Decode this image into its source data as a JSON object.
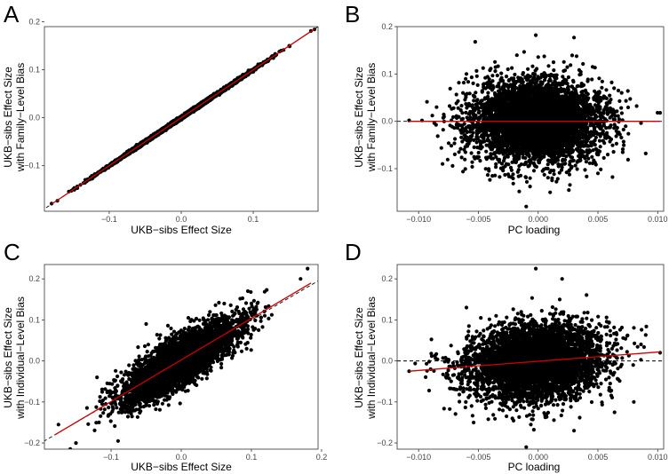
{
  "figure": {
    "panels": [
      {
        "letter": "A",
        "xlabel": "UKB−sibs Effect Size",
        "ylabel_line1": "UKB−sibs Effect Size",
        "ylabel_line2": "with Family−Level Bias"
      },
      {
        "letter": "B",
        "xlabel": "PC loading",
        "ylabel_line1": "UKB−sibs Effect Size",
        "ylabel_line2": "with Family−Level Bias"
      },
      {
        "letter": "C",
        "xlabel": "UKB−sibs Effect Size",
        "ylabel_line1": "UKB−sibs Effect Size",
        "ylabel_line2": "with Individual−Level Bias"
      },
      {
        "letter": "D",
        "xlabel": "PC loading",
        "ylabel_line1": "UKB−sibs Effect Size",
        "ylabel_line2": "with Individual−Level Bias"
      }
    ]
  },
  "chart_data": [
    {
      "id": "A",
      "type": "scatter",
      "xlabel": "UKB−sibs Effect Size",
      "ylabel": "UKB−sibs Effect Size with Family−Level Bias",
      "xlim": [
        -0.19,
        0.19
      ],
      "ylim": [
        -0.195,
        0.19
      ],
      "xticks": [
        -0.1,
        0.0,
        0.1
      ],
      "xtick_labels": [
        "−0.1",
        "0.0",
        "0.1"
      ],
      "yticks": [
        -0.1,
        0.0,
        0.1,
        0.2
      ],
      "ytick_labels": [
        "−0.1",
        "0.0",
        "0.1",
        "0.2"
      ],
      "reference_line": {
        "style": "dashed",
        "color": "#000000",
        "description": "y = x"
      },
      "fit_line": {
        "color": "#cc0000",
        "x": [
          -0.18,
          0.185
        ],
        "y": [
          -0.18,
          0.185
        ]
      },
      "points": {
        "n": 6000,
        "seed": 11,
        "spread_x": 0.045,
        "spread_y": 0.0015,
        "x_mean": 0.0,
        "slope": 1.0,
        "intercept": 0.0,
        "x_range": [
          -0.18,
          0.185
        ],
        "outliers": [
          [
            -0.18,
            -0.179
          ],
          [
            -0.15,
            -0.149
          ],
          [
            -0.14,
            -0.14
          ],
          [
            -0.12,
            -0.12
          ],
          [
            0.13,
            0.131
          ],
          [
            0.15,
            0.15
          ],
          [
            0.18,
            0.181
          ],
          [
            0.185,
            0.184
          ]
        ]
      }
    },
    {
      "id": "B",
      "type": "scatter",
      "xlabel": "PC loading",
      "ylabel": "UKB−sibs Effect Size with Family−Level Bias",
      "xlim": [
        -0.0118,
        0.0105
      ],
      "ylim": [
        -0.19,
        0.2
      ],
      "xticks": [
        -0.01,
        -0.005,
        0.0,
        0.005,
        0.01
      ],
      "xtick_labels": [
        "−0.010",
        "−0.005",
        "0.000",
        "0.005",
        "0.010"
      ],
      "yticks": [
        -0.1,
        0.0,
        0.1,
        0.2
      ],
      "ytick_labels": [
        "−0.1",
        "0.0",
        "0.1",
        "0.2"
      ],
      "reference_line": {
        "style": "dashed",
        "color": "#000000",
        "description": "y = 0"
      },
      "fit_line": {
        "color": "#cc0000",
        "x": [
          -0.0108,
          0.0102
        ],
        "y": [
          0.0,
          0.0
        ]
      },
      "points": {
        "n": 5000,
        "seed": 23,
        "spread_x": 0.0027,
        "spread_y": 0.042,
        "x_mean": -0.0002,
        "slope": 0.0,
        "intercept": 0.0,
        "x_range": [
          -0.0108,
          0.0102
        ],
        "outliers": [
          [
            -0.0002,
            0.182
          ],
          [
            0.003,
            0.177
          ],
          [
            -0.0108,
            0.002
          ],
          [
            0.0102,
            0.018
          ],
          [
            -0.0085,
            0.03
          ],
          [
            -0.008,
            -0.09
          ],
          [
            -0.001,
            -0.18
          ],
          [
            0.001,
            -0.15
          ],
          [
            0.005,
            -0.11
          ],
          [
            -0.006,
            0.1
          ]
        ]
      }
    },
    {
      "id": "C",
      "type": "scatter",
      "xlabel": "UKB−sibs Effect Size",
      "ylabel": "UKB−sibs Effect Size with Individual−Level Bias",
      "xlim": [
        -0.195,
        0.195
      ],
      "ylim": [
        -0.215,
        0.235
      ],
      "xticks": [
        -0.1,
        0.0,
        0.1,
        0.2
      ],
      "xtick_labels": [
        "−0.1",
        "0.0",
        "0.1",
        "0.2"
      ],
      "yticks": [
        -0.2,
        -0.1,
        0.0,
        0.1,
        0.2
      ],
      "ytick_labels": [
        "−0.2",
        "−0.1",
        "0.0",
        "0.1",
        "0.2"
      ],
      "reference_line": {
        "style": "dashed",
        "color": "#000000",
        "description": "y = x"
      },
      "fit_line": {
        "color": "#cc0000",
        "x": [
          -0.18,
          0.185
        ],
        "y": [
          -0.18,
          0.19
        ]
      },
      "points": {
        "n": 5000,
        "seed": 37,
        "spread_x": 0.04,
        "spread_y": 0.028,
        "x_mean": 0.0,
        "slope": 1.0,
        "intercept": 0.0,
        "x_range": [
          -0.16,
          0.19
        ],
        "outliers": [
          [
            -0.175,
            -0.155
          ],
          [
            -0.15,
            -0.2
          ],
          [
            -0.09,
            -0.195
          ],
          [
            0.18,
            0.225
          ],
          [
            0.17,
            0.2
          ],
          [
            0.095,
            0.17
          ],
          [
            0.1,
            0.14
          ],
          [
            -0.12,
            -0.04
          ],
          [
            -0.05,
            0.09
          ]
        ]
      }
    },
    {
      "id": "D",
      "type": "scatter",
      "xlabel": "PC loading",
      "ylabel": "UKB−sibs Effect Size with Individual−Level Bias",
      "xlim": [
        -0.0118,
        0.0105
      ],
      "ylim": [
        -0.215,
        0.235
      ],
      "xticks": [
        -0.01,
        -0.005,
        0.0,
        0.005,
        0.01
      ],
      "xtick_labels": [
        "−0.010",
        "−0.005",
        "0.000",
        "0.005",
        "0.010"
      ],
      "yticks": [
        -0.2,
        -0.1,
        0.0,
        0.1,
        0.2
      ],
      "ytick_labels": [
        "−0.2",
        "−0.1",
        "0.0",
        "0.1",
        "0.2"
      ],
      "reference_line": {
        "style": "dashed",
        "color": "#000000",
        "description": "y = 0"
      },
      "fit_line": {
        "color": "#cc0000",
        "x": [
          -0.0108,
          0.0102
        ],
        "y": [
          -0.025,
          0.022
        ]
      },
      "points": {
        "n": 5000,
        "seed": 53,
        "spread_x": 0.0027,
        "spread_y": 0.045,
        "x_mean": -0.0002,
        "slope": 2.2,
        "intercept": 0.0,
        "x_range": [
          -0.0108,
          0.0102
        ],
        "outliers": [
          [
            -0.0002,
            0.225
          ],
          [
            0.002,
            0.2
          ],
          [
            -0.001,
            -0.21
          ],
          [
            0.003,
            -0.17
          ],
          [
            -0.0108,
            -0.025
          ],
          [
            0.0102,
            0.02
          ],
          [
            -0.009,
            -0.02
          ],
          [
            -0.006,
            0.13
          ],
          [
            0.008,
            -0.1
          ]
        ]
      }
    }
  ]
}
